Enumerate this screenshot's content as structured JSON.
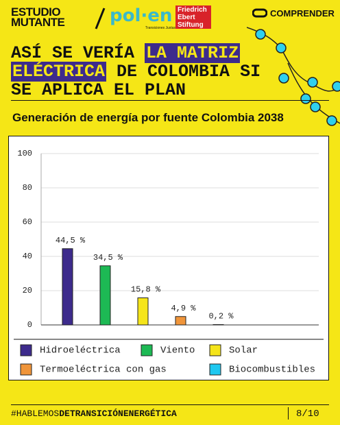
{
  "header": {
    "brand_top": "ESTUDIO",
    "brand_bottom": "MUTANTE",
    "partner": "pol·en",
    "partner_sub": "Transiciones Justas",
    "foundation": [
      "Friedrich",
      "Ebert",
      "Stiftung"
    ],
    "section": "COMPRENDER"
  },
  "headline": {
    "lines": [
      [
        "ASÍ SE VERÍA ",
        "LA MATRIZ"
      ],
      [
        "ELÉCTRICA",
        " DE COLOMBIA SI"
      ],
      [
        "SE APLICA EL PLAN"
      ]
    ]
  },
  "chart_data": {
    "type": "bar",
    "title": "Generación de energía por fuente Colombia 2038",
    "categories": [
      "Hidroeléctrica",
      "Viento",
      "Solar",
      "Termoeléctrica con gas",
      "Biocombustibles"
    ],
    "values": [
      44.5,
      34.5,
      15.8,
      4.9,
      0.2
    ],
    "value_labels": [
      "44,5 %",
      "34,5 %",
      "15,8 %",
      "4,9 %",
      "0,2 %"
    ],
    "colors": [
      "#3d2b8c",
      "#1db954",
      "#f5e51a",
      "#f0953a",
      "#1ec8f0"
    ],
    "ylim": [
      0,
      100
    ],
    "yticks": [
      0,
      20,
      40,
      60,
      80,
      100
    ],
    "grid": true,
    "legend": "bottom"
  },
  "footer": {
    "hashtag": "#HABLEMOS",
    "hashtag_bold": "DETRANSICIÓNENERGÉTICA",
    "page": "8/10"
  }
}
